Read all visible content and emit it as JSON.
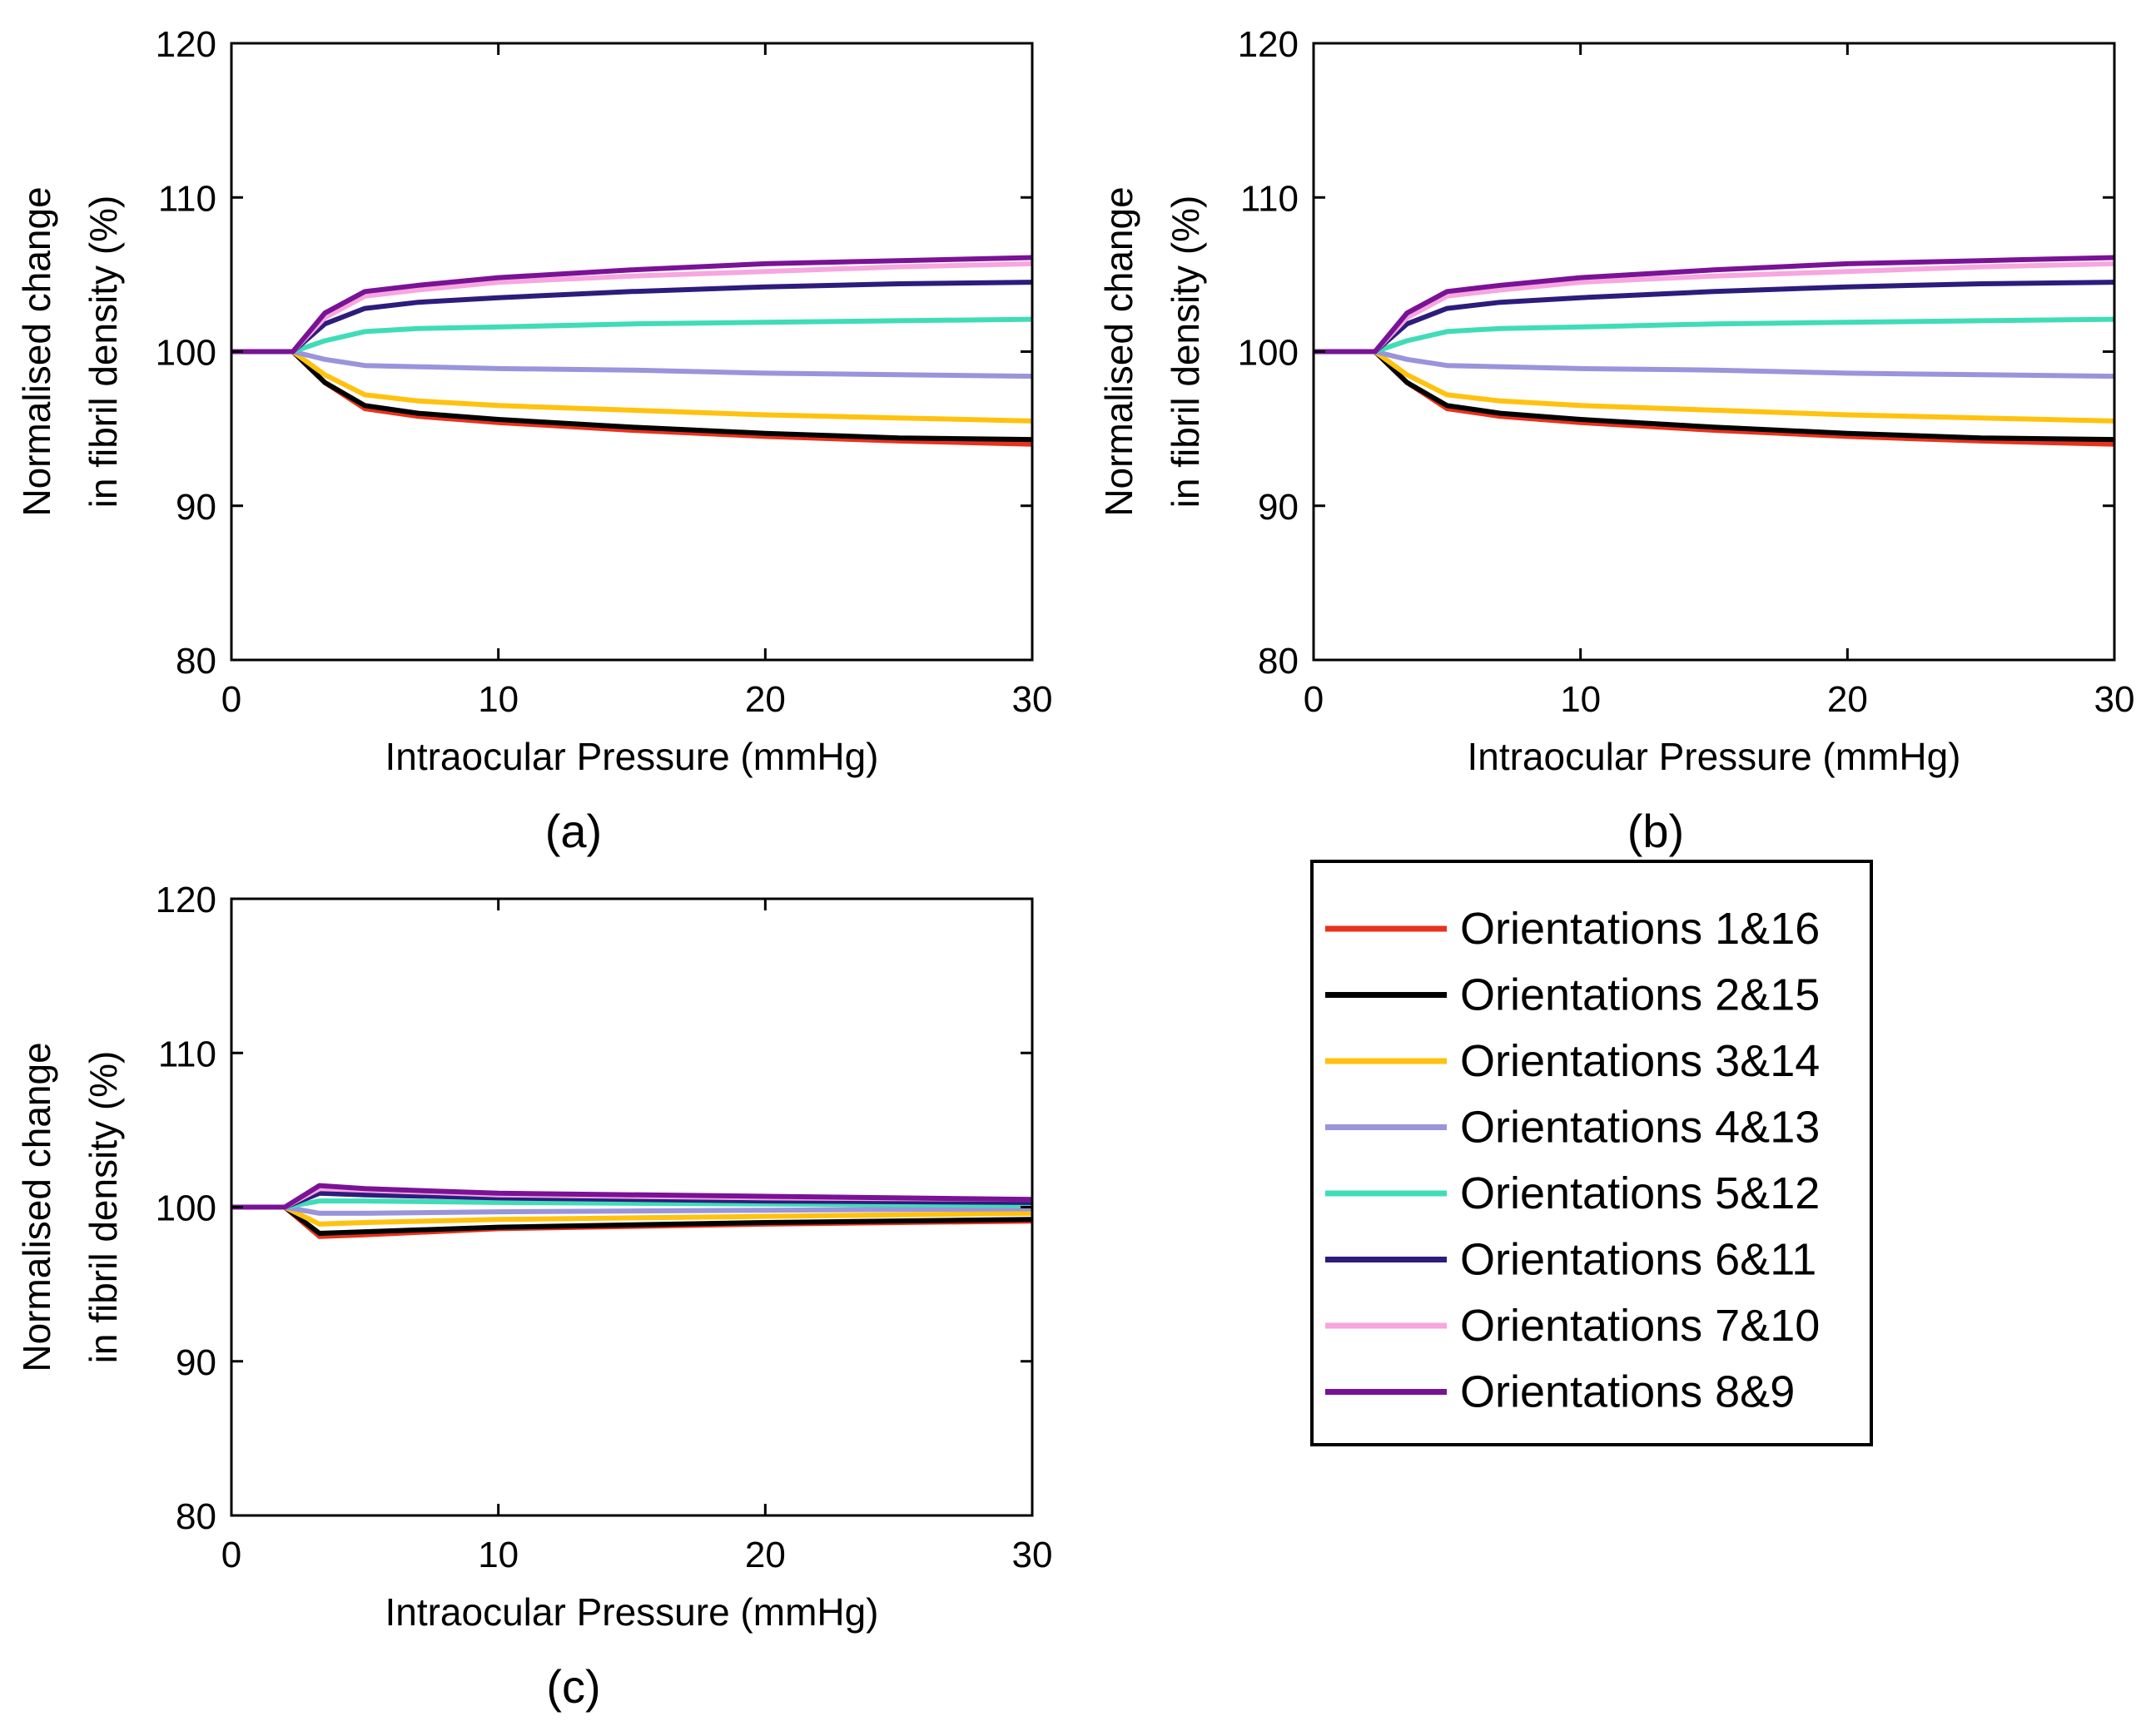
{
  "legend": {
    "items": [
      {
        "label": "Orientations 1&16",
        "color": "#e8321c"
      },
      {
        "label": "Orientations 2&15",
        "color": "#000000"
      },
      {
        "label": "Orientations 3&14",
        "color": "#ffc20e"
      },
      {
        "label": "Orientations 4&13",
        "color": "#9a94dc"
      },
      {
        "label": "Orientations 5&12",
        "color": "#40dcb8"
      },
      {
        "label": "Orientations 6&11",
        "color": "#2e1c7c"
      },
      {
        "label": "Orientations 7&10",
        "color": "#f7a6df"
      },
      {
        "label": "Orientations 8&9",
        "color": "#7a1296"
      }
    ]
  },
  "chart_data": [
    {
      "type": "line",
      "caption": "(a)",
      "xlabel": "Intraocular Pressure (mmHg)",
      "ylabel_lines": [
        "Normalised change",
        "in fibril density (%)"
      ],
      "xlim": [
        0,
        30
      ],
      "ylim": [
        80,
        120
      ],
      "xticks": [
        0,
        10,
        20,
        30
      ],
      "yticks": [
        80,
        90,
        100,
        110,
        120
      ],
      "grid": false,
      "series": [
        {
          "name": "Orientations 1&16",
          "points": [
            [
              0,
              100
            ],
            [
              2.3,
              100
            ],
            [
              3.5,
              98.0
            ],
            [
              5,
              96.3
            ],
            [
              7,
              95.8
            ],
            [
              10,
              95.4
            ],
            [
              15,
              94.9
            ],
            [
              20,
              94.5
            ],
            [
              25,
              94.2
            ],
            [
              30,
              94.0
            ]
          ]
        },
        {
          "name": "Orientations 2&15",
          "points": [
            [
              0,
              100
            ],
            [
              2.3,
              100
            ],
            [
              3.5,
              98.0
            ],
            [
              5,
              96.5
            ],
            [
              7,
              96.0
            ],
            [
              10,
              95.6
            ],
            [
              15,
              95.1
            ],
            [
              20,
              94.7
            ],
            [
              25,
              94.4
            ],
            [
              30,
              94.3
            ]
          ]
        },
        {
          "name": "Orientations 3&14",
          "points": [
            [
              0,
              100
            ],
            [
              2.3,
              100
            ],
            [
              3.5,
              98.5
            ],
            [
              5,
              97.2
            ],
            [
              7,
              96.8
            ],
            [
              10,
              96.5
            ],
            [
              15,
              96.2
            ],
            [
              20,
              95.9
            ],
            [
              25,
              95.7
            ],
            [
              30,
              95.5
            ]
          ]
        },
        {
          "name": "Orientations 4&13",
          "points": [
            [
              0,
              100
            ],
            [
              2.3,
              100
            ],
            [
              3.5,
              99.5
            ],
            [
              5,
              99.1
            ],
            [
              10,
              98.9
            ],
            [
              15,
              98.8
            ],
            [
              20,
              98.6
            ],
            [
              25,
              98.5
            ],
            [
              30,
              98.4
            ]
          ]
        },
        {
          "name": "Orientations 5&12",
          "points": [
            [
              0,
              100
            ],
            [
              2.3,
              100
            ],
            [
              3.5,
              100.7
            ],
            [
              5,
              101.3
            ],
            [
              7,
              101.5
            ],
            [
              10,
              101.6
            ],
            [
              15,
              101.8
            ],
            [
              20,
              101.9
            ],
            [
              25,
              102.0
            ],
            [
              30,
              102.1
            ]
          ]
        },
        {
          "name": "Orientations 6&11",
          "points": [
            [
              0,
              100
            ],
            [
              2.3,
              100
            ],
            [
              3.5,
              101.8
            ],
            [
              5,
              102.8
            ],
            [
              7,
              103.2
            ],
            [
              10,
              103.5
            ],
            [
              15,
              103.9
            ],
            [
              20,
              104.2
            ],
            [
              25,
              104.4
            ],
            [
              30,
              104.5
            ]
          ]
        },
        {
          "name": "Orientations 7&10",
          "points": [
            [
              0,
              100
            ],
            [
              2.3,
              100
            ],
            [
              3.5,
              102.2
            ],
            [
              5,
              103.6
            ],
            [
              7,
              104.0
            ],
            [
              10,
              104.5
            ],
            [
              15,
              104.9
            ],
            [
              20,
              105.2
            ],
            [
              25,
              105.5
            ],
            [
              30,
              105.7
            ]
          ]
        },
        {
          "name": "Orientations 8&9",
          "points": [
            [
              0,
              100
            ],
            [
              2.3,
              100
            ],
            [
              3.5,
              102.5
            ],
            [
              5,
              103.9
            ],
            [
              7,
              104.3
            ],
            [
              10,
              104.8
            ],
            [
              15,
              105.3
            ],
            [
              20,
              105.7
            ],
            [
              25,
              105.9
            ],
            [
              30,
              106.1
            ]
          ]
        }
      ]
    },
    {
      "type": "line",
      "caption": "(b)",
      "xlabel": "Intraocular Pressure (mmHg)",
      "ylabel_lines": [
        "Normalised change",
        "in fibril density (%)"
      ],
      "xlim": [
        0,
        30
      ],
      "ylim": [
        80,
        120
      ],
      "xticks": [
        0,
        10,
        20,
        30
      ],
      "yticks": [
        80,
        90,
        100,
        110,
        120
      ],
      "grid": false,
      "series": [
        {
          "name": "Orientations 1&16",
          "points": [
            [
              0,
              100
            ],
            [
              2.3,
              100
            ],
            [
              3.5,
              98.0
            ],
            [
              5,
              96.3
            ],
            [
              7,
              95.8
            ],
            [
              10,
              95.4
            ],
            [
              15,
              94.9
            ],
            [
              20,
              94.5
            ],
            [
              25,
              94.2
            ],
            [
              30,
              94.0
            ]
          ]
        },
        {
          "name": "Orientations 2&15",
          "points": [
            [
              0,
              100
            ],
            [
              2.3,
              100
            ],
            [
              3.5,
              98.0
            ],
            [
              5,
              96.5
            ],
            [
              7,
              96.0
            ],
            [
              10,
              95.6
            ],
            [
              15,
              95.1
            ],
            [
              20,
              94.7
            ],
            [
              25,
              94.4
            ],
            [
              30,
              94.3
            ]
          ]
        },
        {
          "name": "Orientations 3&14",
          "points": [
            [
              0,
              100
            ],
            [
              2.3,
              100
            ],
            [
              3.5,
              98.5
            ],
            [
              5,
              97.2
            ],
            [
              7,
              96.8
            ],
            [
              10,
              96.5
            ],
            [
              15,
              96.2
            ],
            [
              20,
              95.9
            ],
            [
              25,
              95.7
            ],
            [
              30,
              95.5
            ]
          ]
        },
        {
          "name": "Orientations 4&13",
          "points": [
            [
              0,
              100
            ],
            [
              2.3,
              100
            ],
            [
              3.5,
              99.5
            ],
            [
              5,
              99.1
            ],
            [
              10,
              98.9
            ],
            [
              15,
              98.8
            ],
            [
              20,
              98.6
            ],
            [
              25,
              98.5
            ],
            [
              30,
              98.4
            ]
          ]
        },
        {
          "name": "Orientations 5&12",
          "points": [
            [
              0,
              100
            ],
            [
              2.3,
              100
            ],
            [
              3.5,
              100.7
            ],
            [
              5,
              101.3
            ],
            [
              7,
              101.5
            ],
            [
              10,
              101.6
            ],
            [
              15,
              101.8
            ],
            [
              20,
              101.9
            ],
            [
              25,
              102.0
            ],
            [
              30,
              102.1
            ]
          ]
        },
        {
          "name": "Orientations 6&11",
          "points": [
            [
              0,
              100
            ],
            [
              2.3,
              100
            ],
            [
              3.5,
              101.8
            ],
            [
              5,
              102.8
            ],
            [
              7,
              103.2
            ],
            [
              10,
              103.5
            ],
            [
              15,
              103.9
            ],
            [
              20,
              104.2
            ],
            [
              25,
              104.4
            ],
            [
              30,
              104.5
            ]
          ]
        },
        {
          "name": "Orientations 7&10",
          "points": [
            [
              0,
              100
            ],
            [
              2.3,
              100
            ],
            [
              3.5,
              102.2
            ],
            [
              5,
              103.6
            ],
            [
              7,
              104.0
            ],
            [
              10,
              104.5
            ],
            [
              15,
              104.9
            ],
            [
              20,
              105.2
            ],
            [
              25,
              105.5
            ],
            [
              30,
              105.7
            ]
          ]
        },
        {
          "name": "Orientations 8&9",
          "points": [
            [
              0,
              100
            ],
            [
              2.3,
              100
            ],
            [
              3.5,
              102.5
            ],
            [
              5,
              103.9
            ],
            [
              7,
              104.3
            ],
            [
              10,
              104.8
            ],
            [
              15,
              105.3
            ],
            [
              20,
              105.7
            ],
            [
              25,
              105.9
            ],
            [
              30,
              106.1
            ]
          ]
        }
      ]
    },
    {
      "type": "line",
      "caption": "(c)",
      "xlabel": "Intraocular Pressure (mmHg)",
      "ylabel_lines": [
        "Normalised change",
        "in fibril density (%)"
      ],
      "xlim": [
        0,
        30
      ],
      "ylim": [
        80,
        120
      ],
      "xticks": [
        0,
        10,
        20,
        30
      ],
      "yticks": [
        80,
        90,
        100,
        110,
        120
      ],
      "grid": false,
      "series": [
        {
          "name": "Orientations 1&16",
          "points": [
            [
              0,
              100
            ],
            [
              2,
              100
            ],
            [
              3.3,
              98.1
            ],
            [
              5,
              98.2
            ],
            [
              10,
              98.6
            ],
            [
              20,
              98.9
            ],
            [
              30,
              99.1
            ]
          ]
        },
        {
          "name": "Orientations 2&15",
          "points": [
            [
              0,
              100
            ],
            [
              2,
              100
            ],
            [
              3.3,
              98.3
            ],
            [
              5,
              98.4
            ],
            [
              10,
              98.7
            ],
            [
              20,
              99.0
            ],
            [
              30,
              99.2
            ]
          ]
        },
        {
          "name": "Orientations 3&14",
          "points": [
            [
              0,
              100
            ],
            [
              2,
              100
            ],
            [
              3.3,
              98.9
            ],
            [
              5,
              99.0
            ],
            [
              10,
              99.2
            ],
            [
              20,
              99.4
            ],
            [
              30,
              99.6
            ]
          ]
        },
        {
          "name": "Orientations 4&13",
          "points": [
            [
              0,
              100
            ],
            [
              2,
              100
            ],
            [
              3.3,
              99.6
            ],
            [
              5,
              99.6
            ],
            [
              10,
              99.7
            ],
            [
              20,
              99.8
            ],
            [
              30,
              99.9
            ]
          ]
        },
        {
          "name": "Orientations 5&12",
          "points": [
            [
              0,
              100
            ],
            [
              2,
              100
            ],
            [
              3.3,
              100.4
            ],
            [
              5,
              100.4
            ],
            [
              10,
              100.3
            ],
            [
              20,
              100.2
            ],
            [
              30,
              100.1
            ]
          ]
        },
        {
          "name": "Orientations 6&11",
          "points": [
            [
              0,
              100
            ],
            [
              2,
              100
            ],
            [
              3.3,
              100.9
            ],
            [
              5,
              100.8
            ],
            [
              10,
              100.6
            ],
            [
              20,
              100.4
            ],
            [
              30,
              100.3
            ]
          ]
        },
        {
          "name": "Orientations 7&10",
          "points": [
            [
              0,
              100
            ],
            [
              2,
              100
            ],
            [
              3.3,
              101.2
            ],
            [
              5,
              101.1
            ],
            [
              10,
              100.8
            ],
            [
              20,
              100.6
            ],
            [
              30,
              100.5
            ]
          ]
        },
        {
          "name": "Orientations 8&9",
          "points": [
            [
              0,
              100
            ],
            [
              2,
              100
            ],
            [
              3.3,
              101.4
            ],
            [
              5,
              101.2
            ],
            [
              10,
              100.9
            ],
            [
              20,
              100.7
            ],
            [
              30,
              100.5
            ]
          ]
        }
      ]
    }
  ]
}
